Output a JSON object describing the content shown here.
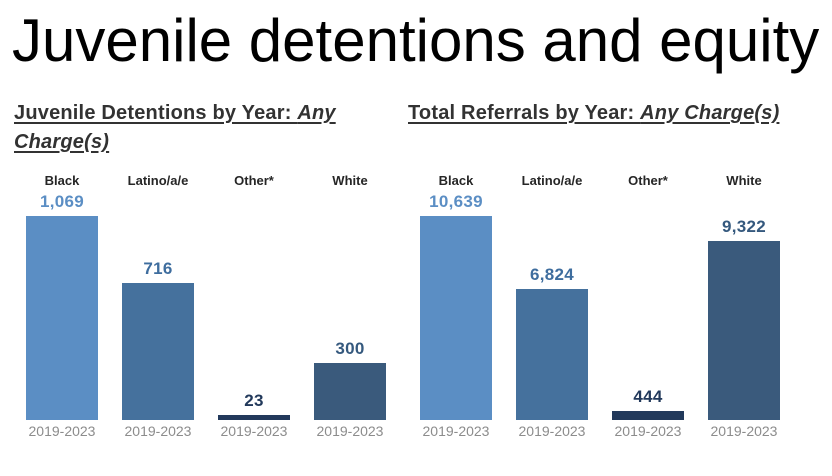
{
  "page": {
    "title": "Juvenile detentions and equity"
  },
  "chart_data": [
    {
      "type": "bar",
      "title": "Juvenile Detentions by Year: Any Charge(s)",
      "title_main": "Juvenile Detentions by Year: ",
      "title_emphasis": "Any Charge(s)",
      "categories": [
        "Black",
        "Latino/a/e",
        "Other*",
        "White"
      ],
      "values": [
        1069,
        716,
        23,
        300
      ],
      "value_labels": [
        "1,069",
        "716",
        "23",
        "300"
      ],
      "x_tick_label": "2019-2023",
      "xlabel": "",
      "ylabel": "",
      "ylim": [
        0,
        1069
      ],
      "grid": false,
      "legend": "none",
      "bar_colors": [
        "#5b8ec4",
        "#45719d",
        "#22395b",
        "#3a5a7c"
      ],
      "value_label_colors": [
        "#5b8ec4",
        "#3e6d9e",
        "#22395b",
        "#35597e"
      ]
    },
    {
      "type": "bar",
      "title": "Total Referrals by Year: Any Charge(s)",
      "title_main": "Total Referrals by Year: ",
      "title_emphasis": "Any Charge(s)",
      "categories": [
        "Black",
        "Latino/a/e",
        "Other*",
        "White"
      ],
      "values": [
        10639,
        6824,
        444,
        9322
      ],
      "value_labels": [
        "10,639",
        "6,824",
        "444",
        "9,322"
      ],
      "x_tick_label": "2019-2023",
      "xlabel": "",
      "ylabel": "",
      "ylim": [
        0,
        10639
      ],
      "grid": false,
      "legend": "none",
      "bar_colors": [
        "#5b8ec4",
        "#45719d",
        "#22395b",
        "#3a5a7c"
      ],
      "value_label_colors": [
        "#5b8ec4",
        "#3e6d9e",
        "#22395b",
        "#35597e"
      ]
    }
  ]
}
